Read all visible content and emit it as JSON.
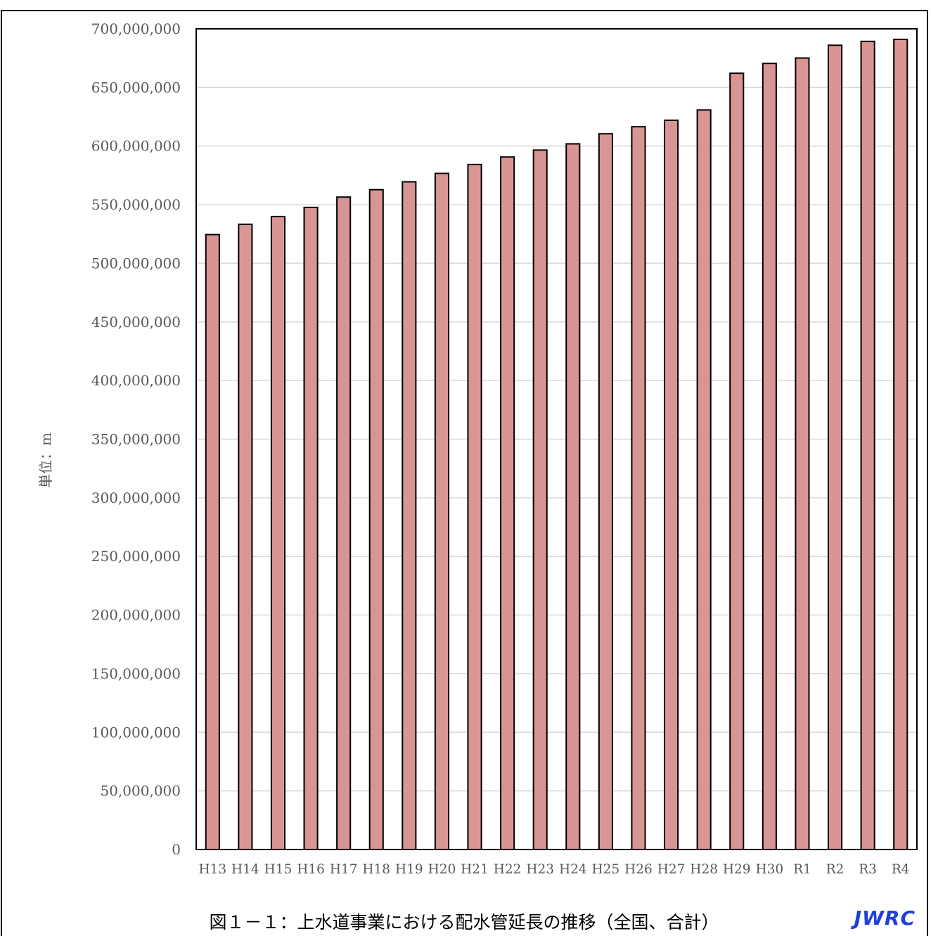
{
  "chart_data": {
    "type": "bar",
    "categories": [
      "H13",
      "H14",
      "H15",
      "H16",
      "H17",
      "H18",
      "H19",
      "H20",
      "H21",
      "H22",
      "H23",
      "H24",
      "H25",
      "H26",
      "H27",
      "H28",
      "H29",
      "H30",
      "R1",
      "R2",
      "R3",
      "R4"
    ],
    "values": [
      524500000,
      533300000,
      539900000,
      547700000,
      556500000,
      562800000,
      569500000,
      576700000,
      584300000,
      590700000,
      596600000,
      601900000,
      610500000,
      616500000,
      622000000,
      630800000,
      662100000,
      670500000,
      675100000,
      686000000,
      689300000,
      691000000
    ],
    "ylabel": "単位：m",
    "ylim": [
      0,
      700000000
    ],
    "yticks": [
      0,
      50000000,
      100000000,
      150000000,
      200000000,
      250000000,
      300000000,
      350000000,
      400000000,
      450000000,
      500000000,
      550000000,
      600000000,
      650000000,
      700000000
    ],
    "ytick_labels": [
      "0",
      "50,000,000",
      "100,000,000",
      "150,000,000",
      "200,000,000",
      "250,000,000",
      "300,000,000",
      "350,000,000",
      "400,000,000",
      "450,000,000",
      "500,000,000",
      "550,000,000",
      "600,000,000",
      "650,000,000",
      "700,000,000"
    ],
    "grid": true,
    "bar_color": "#d99594",
    "bar_edge_color": "#000000",
    "grid_color": "#d9d9d9"
  },
  "caption": "図１－１：上水道事業における配水管延長の推移（全国、合計）",
  "logo_text": "JWRC"
}
